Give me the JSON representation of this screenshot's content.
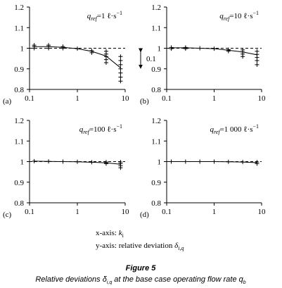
{
  "chart_data": [
    {
      "type": "line",
      "panel_label": "(a)",
      "xscale": "log",
      "xlim": [
        0.1,
        10
      ],
      "xticks": [
        0.1,
        1,
        10
      ],
      "ylim": [
        0.8,
        1.2
      ],
      "yticks": [
        0.8,
        0.9,
        1,
        1.1,
        1.2
      ],
      "reference_line": 1,
      "annotation": {
        "q": "q",
        "sub": "ref",
        "text": "=1 ℓ·s",
        "sup": "−1"
      },
      "bracket_label": "0.1",
      "x": [
        0.125,
        0.25,
        0.5,
        1,
        2,
        4,
        8
      ],
      "values": [
        1.008,
        1.008,
        1.004,
        0.998,
        0.985,
        0.962,
        0.905
      ],
      "markers": {
        "x": [
          0.125,
          0.125,
          0.125,
          0.25,
          0.25,
          0.25,
          0.5,
          0.5,
          1,
          2,
          2,
          4,
          4,
          4,
          4,
          4,
          8,
          8,
          8,
          8,
          8,
          8,
          8
        ],
        "y": [
          1.0,
          1.008,
          1.015,
          1.0,
          1.008,
          1.015,
          1.0,
          1.008,
          0.998,
          0.978,
          0.988,
          0.93,
          0.945,
          0.96,
          0.972,
          0.985,
          0.84,
          0.86,
          0.88,
          0.9,
          0.92,
          0.94,
          0.96
        ]
      }
    },
    {
      "type": "line",
      "panel_label": "(b)",
      "xscale": "log",
      "xlim": [
        0.1,
        10
      ],
      "xticks": [
        0.1,
        1,
        10
      ],
      "ylim": [
        0.8,
        1.2
      ],
      "yticks": [
        0.8,
        0.9,
        1,
        1.1,
        1.2
      ],
      "reference_line": 1,
      "annotation": {
        "q": "q",
        "sub": "ref",
        "text": "=10 ℓ·s",
        "sup": "−1"
      },
      "x": [
        0.125,
        0.25,
        0.5,
        1,
        2,
        4,
        8
      ],
      "values": [
        1.002,
        1.002,
        1.0,
        0.998,
        0.99,
        0.982,
        0.968
      ],
      "markers": {
        "x": [
          0.125,
          0.125,
          0.25,
          0.25,
          0.5,
          1,
          2,
          2,
          4,
          4,
          4,
          4,
          8,
          8,
          8,
          8,
          8
        ],
        "y": [
          0.998,
          1.004,
          0.998,
          1.004,
          1.0,
          0.998,
          0.986,
          0.993,
          0.96,
          0.972,
          0.982,
          0.992,
          0.92,
          0.94,
          0.955,
          0.97,
          0.985
        ]
      }
    },
    {
      "type": "line",
      "panel_label": "(c)",
      "xscale": "log",
      "xlim": [
        0.1,
        10
      ],
      "xticks": [
        0.1,
        1,
        10
      ],
      "ylim": [
        0.8,
        1.2
      ],
      "yticks": [
        0.8,
        0.9,
        1,
        1.1,
        1.2
      ],
      "reference_line": 1,
      "annotation": {
        "q": "q",
        "sub": "ref",
        "text": "=100 ℓ·s",
        "sup": "−1"
      },
      "x": [
        0.125,
        0.25,
        0.5,
        1,
        2,
        4,
        8
      ],
      "values": [
        1.002,
        1.001,
        1.0,
        0.999,
        0.997,
        0.994,
        0.987
      ],
      "markers": {
        "x": [
          0.125,
          0.25,
          0.5,
          1,
          2,
          4,
          4,
          8,
          8,
          8,
          8
        ],
        "y": [
          1.002,
          1.001,
          1.0,
          0.999,
          0.997,
          0.99,
          0.998,
          0.97,
          0.98,
          0.99,
          0.998
        ]
      }
    },
    {
      "type": "line",
      "panel_label": "(d)",
      "xscale": "log",
      "xlim": [
        0.1,
        10
      ],
      "xticks": [
        0.1,
        1,
        10
      ],
      "ylim": [
        0.8,
        1.2
      ],
      "yticks": [
        0.8,
        0.9,
        1,
        1.1,
        1.2
      ],
      "reference_line": 1,
      "annotation": {
        "q": "q",
        "sub": "ref",
        "text": "=1 000 ℓ·s",
        "sup": "−1"
      },
      "x": [
        0.125,
        0.25,
        0.5,
        1,
        2,
        4,
        8
      ],
      "values": [
        1.0,
        1.0,
        1.0,
        1.0,
        0.999,
        0.998,
        0.995
      ],
      "markers": {
        "x": [
          0.125,
          0.25,
          0.5,
          1,
          2,
          4,
          8,
          8
        ],
        "y": [
          1.0,
          1.0,
          1.0,
          1.0,
          0.999,
          0.998,
          0.99,
          0.998
        ]
      }
    }
  ],
  "figure": {
    "x_axis_note": {
      "text": "x-axis: ",
      "var": "k",
      "sub": "i"
    },
    "y_axis_note": {
      "text": "y-axis: relative deviation ",
      "var": "δ",
      "sub": "i,q"
    },
    "title": "Figure 5",
    "caption": {
      "before": "Relative deviations ",
      "var": "δ",
      "sub": "i,q",
      "middle": " at the base case operating flow rate ",
      "var2": "q",
      "sub2": "b"
    }
  }
}
